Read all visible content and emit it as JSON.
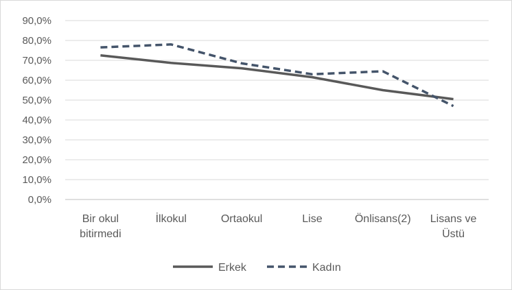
{
  "chart_data": {
    "type": "line",
    "title": "",
    "xlabel": "",
    "ylabel": "",
    "categories": [
      [
        "Bir okul",
        "bitirmedi"
      ],
      [
        "İlkokul"
      ],
      [
        "Ortaokul"
      ],
      [
        "Lise"
      ],
      [
        "Önlisans(2)"
      ],
      [
        "Lisans ve",
        "Üstü"
      ]
    ],
    "ylim": [
      0,
      90
    ],
    "yticks": [
      0,
      10,
      20,
      30,
      40,
      50,
      60,
      70,
      80,
      90
    ],
    "ytick_labels": [
      "0,0%",
      "10,0%",
      "20,0%",
      "30,0%",
      "40,0%",
      "50,0%",
      "60,0%",
      "70,0%",
      "80,0%",
      "90,0%"
    ],
    "grid": true,
    "legend_position": "bottom",
    "series": [
      {
        "name": "Erkek",
        "values": [
          72.5,
          68.7,
          66.0,
          61.5,
          55.0,
          50.5
        ],
        "color": "#595959",
        "style": "solid"
      },
      {
        "name": "Kadın",
        "values": [
          76.5,
          78.0,
          68.5,
          63.0,
          64.5,
          47.0
        ],
        "color": "#44546a",
        "style": "dashed"
      }
    ]
  }
}
